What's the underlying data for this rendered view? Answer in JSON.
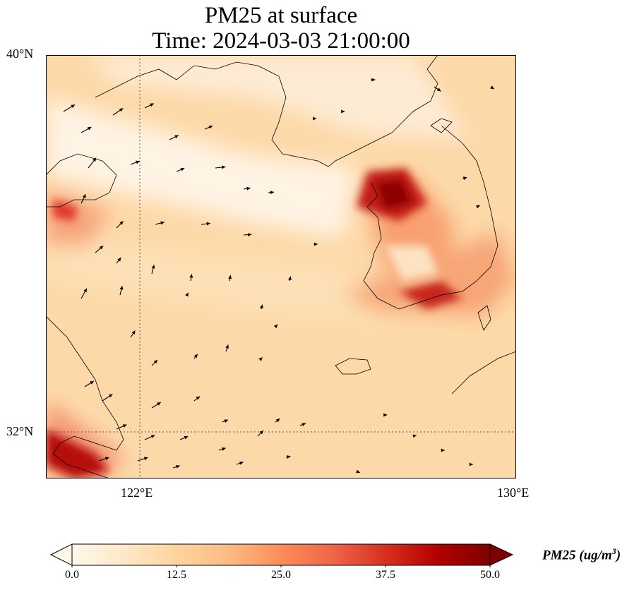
{
  "title": {
    "line1": "PM25 at surface",
    "line2": "Time: 2024-03-03 21:00:00"
  },
  "axes": {
    "lat_ticks": [
      "40°N",
      "32°N"
    ],
    "lon_ticks": [
      "122°E",
      "130°E"
    ],
    "lon_range": [
      120,
      130
    ],
    "lat_range": [
      31,
      40
    ],
    "gridlines": "dotted at 122°E and 32°N"
  },
  "colorbar": {
    "label": "PM25 (ug/m",
    "label_exp": "3",
    "label_close": ")",
    "ticks": [
      "0.0",
      "12.5",
      "25.0",
      "37.5",
      "50.0"
    ],
    "min": 0,
    "max": 50,
    "colormap": "OrRd",
    "extend": "both",
    "colors": [
      "#fff7ec",
      "#fee8c8",
      "#fdd49e",
      "#fdbb84",
      "#fc8d59",
      "#ef6548",
      "#d7301f",
      "#b30000",
      "#7f0000"
    ]
  },
  "chart_data": {
    "type": "heatmap",
    "variable": "PM25",
    "xlabel": "",
    "ylabel": "",
    "xlim": [
      120,
      130
    ],
    "ylim": [
      31,
      40
    ],
    "high_concentration_regions": [
      {
        "lon": 127.0,
        "lat": 37.5,
        "value": 48
      },
      {
        "lon": 128.0,
        "lat": 35.2,
        "value": 45
      },
      {
        "lon": 121.0,
        "lat": 31.6,
        "value": 50
      },
      {
        "lon": 120.3,
        "lat": 36.7,
        "value": 38
      },
      {
        "lon": 129.0,
        "lat": 35.8,
        "value": 30
      }
    ],
    "background_value": 15,
    "wind_vectors": "overlaid black arrows",
    "coastlines": true
  }
}
